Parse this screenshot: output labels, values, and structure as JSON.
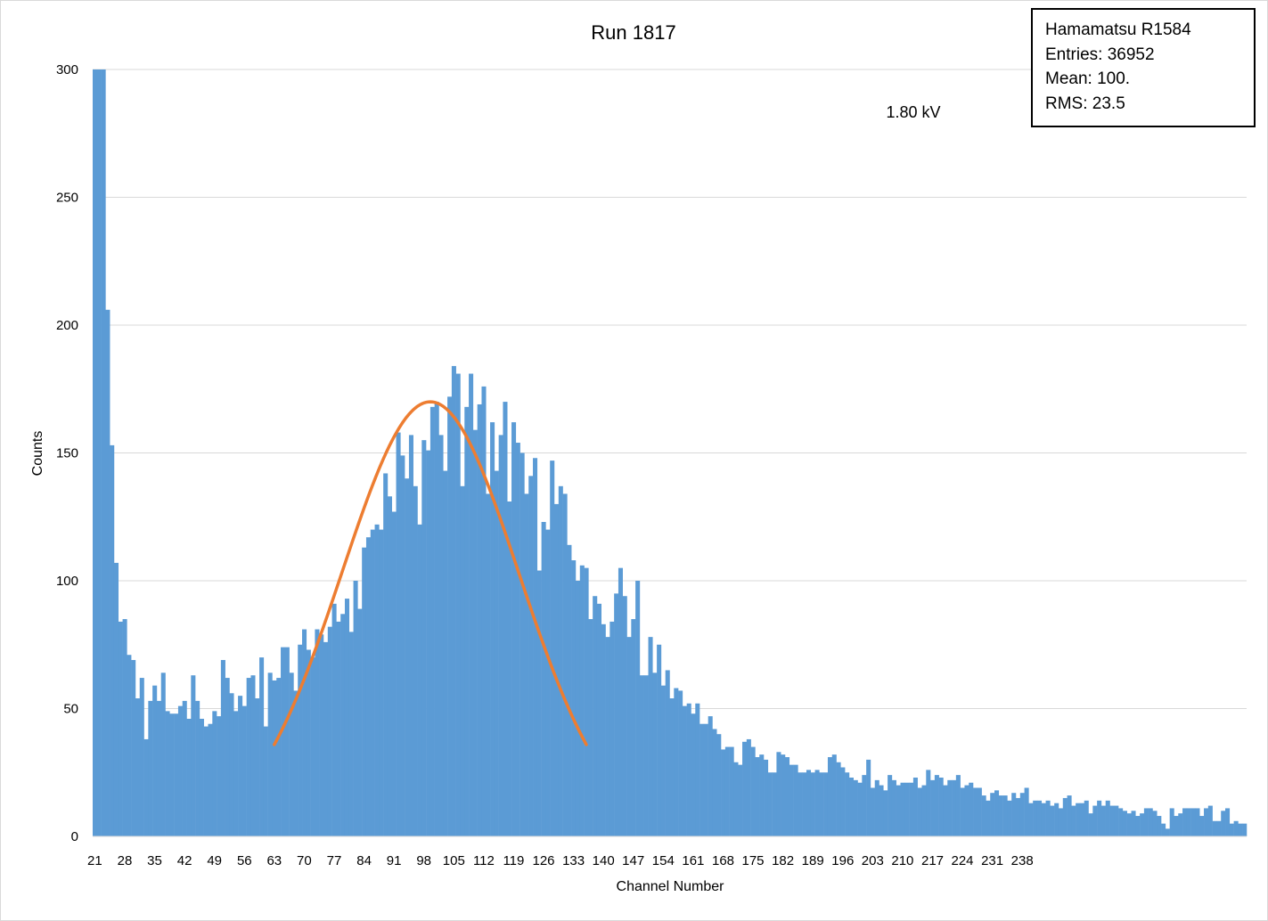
{
  "chart_data": {
    "type": "bar",
    "title": "Run 1817",
    "xlabel": "Channel Number",
    "ylabel": "Counts",
    "ylim": [
      0,
      300
    ],
    "yticks": [
      0,
      50,
      100,
      150,
      200,
      250,
      300
    ],
    "grid": "horizontal",
    "x_start": 21,
    "x_tick_labels": [
      "21",
      "28",
      "35",
      "42",
      "49",
      "56",
      "63",
      "70",
      "77",
      "84",
      "91",
      "98",
      "105",
      "112",
      "119",
      "126",
      "133",
      "140",
      "147",
      "154",
      "161",
      "168",
      "175",
      "182",
      "189",
      "196",
      "203",
      "210",
      "217",
      "224",
      "231",
      "238"
    ],
    "annotation": "1.80 kV",
    "stats": {
      "name": "Hamamatsu R1584",
      "entries": "Entries: 36952",
      "mean": "Mean: 100.",
      "rms": "RMS: 23.5"
    },
    "series": [
      {
        "name": "",
        "color": "#5b9bd5",
        "values": [
          300,
          300,
          300,
          206,
          153,
          107,
          84,
          85,
          71,
          69,
          54,
          62,
          38,
          53,
          59,
          53,
          64,
          49,
          48,
          48,
          51,
          53,
          46,
          63,
          53,
          46,
          43,
          44,
          49,
          47,
          69,
          62,
          56,
          49,
          55,
          51,
          62,
          63,
          54,
          70,
          43,
          64,
          61,
          62,
          74,
          74,
          64,
          57,
          75,
          81,
          73,
          70,
          81,
          79,
          76,
          82,
          91,
          84,
          87,
          93,
          80,
          100,
          89,
          113,
          117,
          120,
          122,
          120,
          142,
          133,
          127,
          158,
          149,
          140,
          157,
          137,
          122,
          155,
          151,
          168,
          170,
          157,
          143,
          172,
          184,
          181,
          137,
          168,
          181,
          159,
          169,
          176,
          134,
          162,
          143,
          157,
          170,
          131,
          162,
          154,
          150,
          134,
          141,
          148,
          104,
          123,
          120,
          147,
          130,
          137,
          134,
          114,
          108,
          100,
          106,
          105,
          85,
          94,
          91,
          83,
          78,
          84,
          95,
          105,
          94,
          78,
          85,
          100,
          63,
          63,
          78,
          64,
          75,
          59,
          65,
          54,
          58,
          57,
          51,
          52,
          48,
          52,
          44,
          44,
          47,
          42,
          40,
          34,
          35,
          35,
          29,
          28,
          37,
          38,
          35,
          31,
          32,
          30,
          25,
          25,
          33,
          32,
          31,
          28,
          28,
          25,
          25,
          26,
          25,
          26,
          25,
          25,
          31,
          32,
          29,
          27,
          25,
          23,
          22,
          21,
          24,
          30,
          19,
          22,
          20,
          18,
          24,
          22,
          20,
          21,
          21,
          21,
          23,
          19,
          20,
          26,
          22,
          24,
          23,
          20,
          22,
          22,
          24,
          19,
          20,
          21,
          19,
          19,
          16,
          14,
          17,
          18,
          16,
          16,
          14,
          17,
          15,
          17,
          19,
          13,
          14,
          14,
          13,
          14,
          12,
          13,
          11,
          15,
          16,
          12,
          13,
          13,
          14,
          9,
          12,
          14,
          12,
          14,
          12,
          12,
          11,
          10,
          9,
          10,
          8,
          9,
          11,
          11,
          10,
          8,
          5,
          3,
          11,
          8,
          9,
          11,
          11,
          11,
          11,
          8,
          11,
          12,
          6,
          6,
          10,
          11,
          5,
          6,
          5,
          5
        ]
      },
      {
        "name": "",
        "type": "line",
        "color": "#ed7d31",
        "fit": "gaussian",
        "x_range": [
          63,
          136
        ],
        "peak": 170,
        "center": 99.5,
        "sigma": 20.7
      }
    ]
  }
}
